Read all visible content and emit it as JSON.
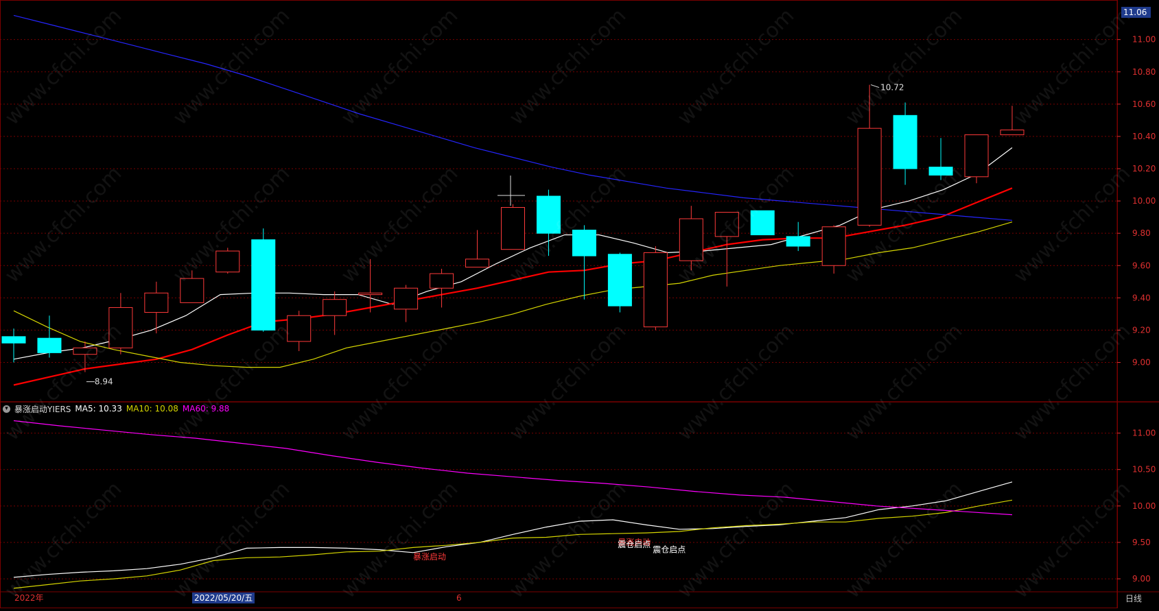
{
  "watermark": "www.cfchi.com",
  "price_badge": "11.06",
  "indicator_header": {
    "name": "暴涨启动YIERS",
    "ma5_label": "MA5: 10.33",
    "ma10_label": "MA10: 10.08",
    "ma60_label": "MA60: 9.88"
  },
  "time_axis": {
    "start_label": "2022年",
    "cursor_date": "2022/05/20/五",
    "month_mark": "6",
    "cycle": "日线"
  },
  "colors": {
    "up": "#ff3a3a",
    "down": "#00ffff",
    "ma5": "#ffffff",
    "ma10": "#ff0000",
    "ma20": "#d6d600",
    "ma_long": "#2525ff",
    "ma60_ind": "#ff00ff",
    "ind_ma10": "#d6d600",
    "grid": "#7a0000",
    "axis_text": "#e03030",
    "background": "#000000"
  },
  "chart_data": [
    {
      "type": "candlestick",
      "title": "",
      "y_range": [
        8.76,
        11.16
      ],
      "y_ticks": [
        9.0,
        9.2,
        9.4,
        9.6,
        9.8,
        10.0,
        10.2,
        10.4,
        10.6,
        10.8,
        11.0
      ],
      "y_tick_labels": [
        "9.00",
        "9.20",
        "9.40",
        "9.60",
        "9.80",
        "10.00",
        "10.20",
        "10.40",
        "10.60",
        "10.80",
        "11.00"
      ],
      "candles": [
        {
          "o": 9.16,
          "h": 9.21,
          "l": 9.0,
          "c": 9.12
        },
        {
          "o": 9.15,
          "h": 9.29,
          "l": 9.03,
          "c": 9.06
        },
        {
          "o": 9.05,
          "h": 9.13,
          "l": 8.94,
          "c": 9.09
        },
        {
          "o": 9.09,
          "h": 9.43,
          "l": 9.05,
          "c": 9.34
        },
        {
          "o": 9.31,
          "h": 9.5,
          "l": 9.18,
          "c": 9.43
        },
        {
          "o": 9.37,
          "h": 9.57,
          "l": 9.37,
          "c": 9.52
        },
        {
          "o": 9.56,
          "h": 9.71,
          "l": 9.55,
          "c": 9.69
        },
        {
          "o": 9.76,
          "h": 9.83,
          "l": 9.19,
          "c": 9.2
        },
        {
          "o": 9.13,
          "h": 9.32,
          "l": 9.07,
          "c": 9.29
        },
        {
          "o": 9.29,
          "h": 9.44,
          "l": 9.17,
          "c": 9.39
        },
        {
          "o": 9.42,
          "h": 9.64,
          "l": 9.31,
          "c": 9.43
        },
        {
          "o": 9.33,
          "h": 9.48,
          "l": 9.25,
          "c": 9.46
        },
        {
          "o": 9.46,
          "h": 9.58,
          "l": 9.34,
          "c": 9.55
        },
        {
          "o": 9.59,
          "h": 9.82,
          "l": 9.59,
          "c": 9.64
        },
        {
          "o": 9.7,
          "h": 9.98,
          "l": 9.7,
          "c": 9.96
        },
        {
          "o": 10.03,
          "h": 10.07,
          "l": 9.66,
          "c": 9.8
        },
        {
          "o": 9.82,
          "h": 9.85,
          "l": 9.39,
          "c": 9.66
        },
        {
          "o": 9.67,
          "h": 9.68,
          "l": 9.31,
          "c": 9.35
        },
        {
          "o": 9.22,
          "h": 9.72,
          "l": 9.2,
          "c": 9.68
        },
        {
          "o": 9.63,
          "h": 9.97,
          "l": 9.57,
          "c": 9.89
        },
        {
          "o": 9.78,
          "h": 9.93,
          "l": 9.47,
          "c": 9.93
        },
        {
          "o": 9.94,
          "h": 9.94,
          "l": 9.79,
          "c": 9.79
        },
        {
          "o": 9.78,
          "h": 9.87,
          "l": 9.69,
          "c": 9.72
        },
        {
          "o": 9.6,
          "h": 9.85,
          "l": 9.55,
          "c": 9.84
        },
        {
          "o": 9.85,
          "h": 10.72,
          "l": 9.84,
          "c": 10.45
        },
        {
          "o": 10.53,
          "h": 10.61,
          "l": 10.1,
          "c": 10.2
        },
        {
          "o": 10.21,
          "h": 10.39,
          "l": 10.13,
          "c": 10.16
        },
        {
          "o": 10.15,
          "h": 10.41,
          "l": 10.11,
          "c": 10.41
        },
        {
          "o": 10.41,
          "h": 10.59,
          "l": 10.41,
          "c": 10.44
        }
      ],
      "annotations": [
        {
          "text": "10.72",
          "index": 24,
          "price": 10.72
        },
        {
          "text": "8.94",
          "index": 2,
          "price": 8.94
        }
      ],
      "series": [
        {
          "id": "ma5",
          "values": [
            9.02,
            9.06,
            9.09,
            9.14,
            9.2,
            9.29,
            9.42,
            9.43,
            9.43,
            9.42,
            9.42,
            9.36,
            9.44,
            9.5,
            9.61,
            9.71,
            9.79,
            9.79,
            9.74,
            9.68,
            9.69,
            9.71,
            9.73,
            9.79,
            9.85,
            9.95,
            10.0,
            10.07,
            10.17,
            10.33
          ]
        },
        {
          "id": "ma10",
          "values": [
            8.86,
            8.91,
            8.96,
            8.99,
            9.02,
            9.08,
            9.17,
            9.25,
            9.27,
            9.3,
            9.34,
            9.38,
            9.42,
            9.46,
            9.51,
            9.56,
            9.57,
            9.61,
            9.63,
            9.68,
            9.73,
            9.76,
            9.77,
            9.77,
            9.81,
            9.85,
            9.9,
            9.99,
            10.08
          ]
        },
        {
          "id": "ma20",
          "values": [
            9.32,
            9.22,
            9.13,
            9.08,
            9.04,
            9.0,
            8.98,
            8.97,
            8.97,
            9.02,
            9.09,
            9.13,
            9.17,
            9.21,
            9.25,
            9.3,
            9.36,
            9.41,
            9.45,
            9.47,
            9.49,
            9.54,
            9.57,
            9.6,
            9.62,
            9.64,
            9.68,
            9.71,
            9.76,
            9.81,
            9.87
          ]
        },
        {
          "id": "ma_long",
          "values": [
            11.15,
            11.09,
            11.03,
            10.97,
            10.91,
            10.85,
            10.78,
            10.7,
            10.62,
            10.54,
            10.47,
            10.4,
            10.33,
            10.27,
            10.21,
            10.16,
            10.12,
            10.08,
            10.05,
            10.02,
            10.0,
            9.98,
            9.96,
            9.94,
            9.92,
            9.9,
            9.88
          ]
        }
      ]
    },
    {
      "type": "line",
      "title": "暴涨启动YIERS",
      "y_range": [
        8.85,
        11.25
      ],
      "y_ticks": [
        9.0,
        9.5,
        10.0,
        10.5,
        11.0
      ],
      "y_tick_labels": [
        "9.00",
        "9.50",
        "10.00",
        "10.50",
        "11.00"
      ],
      "series": [
        {
          "name": "MA5",
          "values": [
            9.02,
            9.06,
            9.09,
            9.11,
            9.14,
            9.2,
            9.29,
            9.42,
            9.43,
            9.43,
            9.42,
            9.4,
            9.36,
            9.44,
            9.5,
            9.61,
            9.71,
            9.79,
            9.81,
            9.74,
            9.68,
            9.69,
            9.72,
            9.74,
            9.79,
            9.84,
            9.95,
            10.0,
            10.07,
            10.2,
            10.33
          ]
        },
        {
          "name": "MA10",
          "values": [
            8.87,
            8.92,
            8.97,
            9.0,
            9.04,
            9.12,
            9.25,
            9.29,
            9.3,
            9.33,
            9.37,
            9.38,
            9.43,
            9.46,
            9.5,
            9.56,
            9.57,
            9.61,
            9.62,
            9.63,
            9.65,
            9.7,
            9.73,
            9.75,
            9.78,
            9.78,
            9.83,
            9.86,
            9.91,
            10.0,
            10.08
          ]
        },
        {
          "name": "MA60",
          "values": [
            11.17,
            11.1,
            11.04,
            10.98,
            10.93,
            10.86,
            10.79,
            10.69,
            10.6,
            10.52,
            10.45,
            10.4,
            10.35,
            10.31,
            10.26,
            10.2,
            10.15,
            10.12,
            10.06,
            10.0,
            9.96,
            9.92,
            9.88
          ]
        }
      ],
      "signals": [
        {
          "text": "暴涨启动",
          "x": 0.4,
          "price": 9.3,
          "color": "#ff3a3a"
        },
        {
          "text": "暴涨启动",
          "x": 0.605,
          "price": 9.5,
          "color": "#ff3a3a"
        },
        {
          "text": "震仓启点",
          "x": 0.605,
          "price": 9.47,
          "color": "#ffffff"
        },
        {
          "text": "震仓启点",
          "x": 0.64,
          "price": 9.4,
          "color": "#ffffff"
        }
      ]
    }
  ]
}
